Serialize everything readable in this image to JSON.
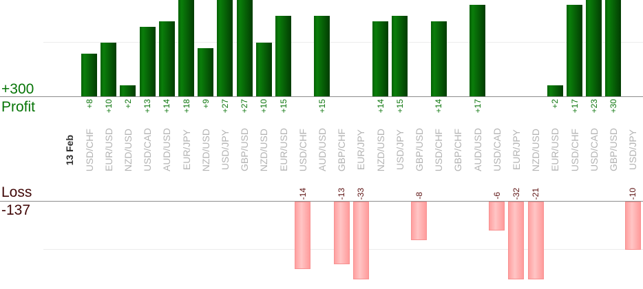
{
  "chart_data": {
    "type": "bar",
    "date_label": "13 Feb",
    "profit_row": {
      "total_label": "+300",
      "row_label": "Profit",
      "total": 300
    },
    "loss_row": {
      "row_label": "Loss",
      "total_label": "-137",
      "total": -137
    },
    "axes": {
      "profit_baseline": 0,
      "profit_gridline_value": 10,
      "loss_gridline_value": -10,
      "grid": "on",
      "bars_clipped_above": 18,
      "bars_clipped_below": -16
    },
    "colors": {
      "profit_bar_light": "#0a7e0a",
      "profit_bar_dark": "#023c02",
      "loss_bar_fill": "#ffc5c5",
      "loss_bar_border": "#f79090",
      "profit_text": "#077507",
      "profit_value_text": "#0c750c",
      "loss_text": "#3f0606",
      "loss_value_text": "#5c1111",
      "pair_label_text": "#b3b3b3",
      "date_label_text": "#2e2e2e",
      "axis_line": "#8c8c8c",
      "gridline": "#ececec"
    },
    "columns": [
      {
        "pair": "USD/CHF",
        "value": 8,
        "label": "+8"
      },
      {
        "pair": "EUR/USD",
        "value": 10,
        "label": "+10"
      },
      {
        "pair": "NZD/USD",
        "value": 2,
        "label": "+2"
      },
      {
        "pair": "USD/CAD",
        "value": 13,
        "label": "+13"
      },
      {
        "pair": "AUD/USD",
        "value": 14,
        "label": "+14"
      },
      {
        "pair": "EUR/JPY",
        "value": 18,
        "label": "+18"
      },
      {
        "pair": "NZD/USD",
        "value": 9,
        "label": "+9"
      },
      {
        "pair": "USD/JPY",
        "value": 27,
        "label": "+27"
      },
      {
        "pair": "GBP/USD",
        "value": 27,
        "label": "+27"
      },
      {
        "pair": "NZD/USD",
        "value": 10,
        "label": "+10"
      },
      {
        "pair": "EUR/USD",
        "value": 15,
        "label": "+15"
      },
      {
        "pair": "USD/CHF",
        "value": -14,
        "label": "-14"
      },
      {
        "pair": "AUD/USD",
        "value": 15,
        "label": "+15"
      },
      {
        "pair": "GBP/CHF",
        "value": -13,
        "label": "-13"
      },
      {
        "pair": "EUR/JPY",
        "value": -33,
        "label": "-33"
      },
      {
        "pair": "NZD/USD",
        "value": 14,
        "label": "+14"
      },
      {
        "pair": "USD/JPY",
        "value": 15,
        "label": "+15"
      },
      {
        "pair": "GBP/USD",
        "value": -8,
        "label": "-8"
      },
      {
        "pair": "USD/CHF",
        "value": 14,
        "label": "+14"
      },
      {
        "pair": "GBP/CHF",
        "value": 0,
        "label": null
      },
      {
        "pair": "AUD/USD",
        "value": 17,
        "label": "+17"
      },
      {
        "pair": "USD/CAD",
        "value": -6,
        "label": "-6"
      },
      {
        "pair": "EUR/JPY",
        "value": -32,
        "label": "-32"
      },
      {
        "pair": "NZD/USD",
        "value": -21,
        "label": "-21"
      },
      {
        "pair": "EUR/USD",
        "value": 2,
        "label": "+2"
      },
      {
        "pair": "USD/CHF",
        "value": 17,
        "label": "+17"
      },
      {
        "pair": "USD/CAD",
        "value": 23,
        "label": "+23"
      },
      {
        "pair": "GBP/USD",
        "value": 30,
        "label": "+30"
      },
      {
        "pair": "USD/JPY",
        "value": -10,
        "label": "-10"
      }
    ]
  }
}
